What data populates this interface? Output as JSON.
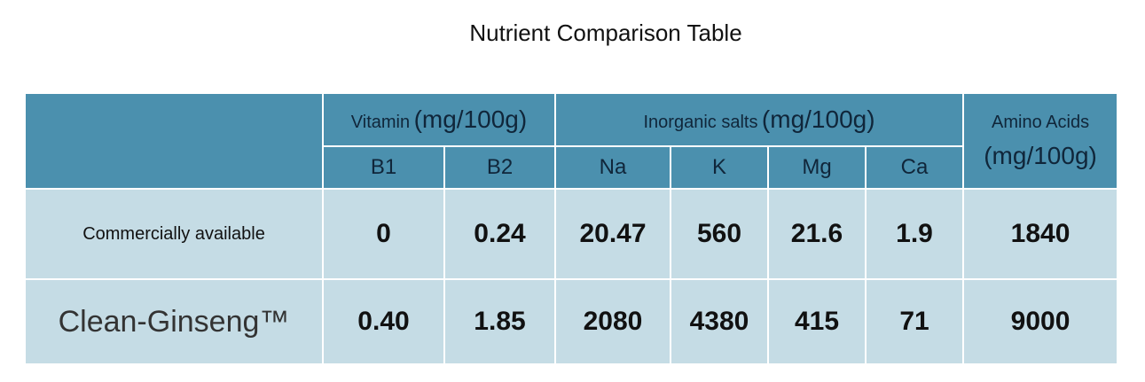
{
  "title": "Nutrient Comparison Table",
  "table": {
    "header": {
      "groups": [
        {
          "label": "Vitamin",
          "unit": "(mg/100g)"
        },
        {
          "label": "Inorganic salts",
          "unit": "(mg/100g)"
        },
        {
          "label": "Amino Acids",
          "unit": "(mg/100g)"
        }
      ],
      "columns": [
        "B1",
        "B2",
        "Na",
        "K",
        "Mg",
        "Ca"
      ]
    },
    "rows": [
      {
        "label": "Commercially available",
        "values": [
          "0",
          "0.24",
          "20.47",
          "560",
          "21.6",
          "1.9",
          "1840"
        ]
      },
      {
        "label": "Clean-Ginseng™",
        "values": [
          "0.40",
          "1.85",
          "2080",
          "4380",
          "415",
          "71",
          "9000"
        ]
      }
    ]
  }
}
